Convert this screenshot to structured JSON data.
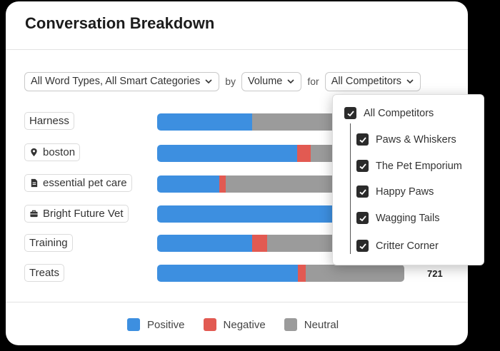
{
  "panel": {
    "title": "Conversation Breakdown"
  },
  "filters": {
    "word_types": "All Word Types, All Smart Categories",
    "by_label": "by",
    "metric": "Volume",
    "for_label": "for",
    "competitors": "All Competitors"
  },
  "rows": [
    {
      "label": "Harness",
      "icon": "none",
      "positive": 0.46,
      "negative": 0.0,
      "neutral": 0.54,
      "total": ""
    },
    {
      "label": "boston",
      "icon": "map-pin-icon",
      "positive": 0.56,
      "negative": 0.055,
      "neutral": 0.385,
      "total": ""
    },
    {
      "label": "essential pet care",
      "icon": "document-icon",
      "positive": 0.3,
      "negative": 0.03,
      "neutral": 0.67,
      "total": ""
    },
    {
      "label": "Bright Future Vet",
      "icon": "briefcase-icon",
      "positive": 1.0,
      "negative": 0.0,
      "neutral": 0.0,
      "total": ""
    },
    {
      "label": "Training",
      "icon": "none",
      "positive": 0.38,
      "negative": 0.06,
      "neutral": 0.56,
      "total": ""
    },
    {
      "label": "Treats",
      "icon": "none",
      "positive": 0.57,
      "negative": 0.03,
      "neutral": 0.4,
      "total": "721"
    }
  ],
  "legend": [
    {
      "label": "Positive",
      "color": "#3d8fe0"
    },
    {
      "label": "Negative",
      "color": "#e25a52"
    },
    {
      "label": "Neutral",
      "color": "#9b9b9b"
    }
  ],
  "competitor_dropdown": {
    "all_label": "All Competitors",
    "items": [
      "Paws & Whiskers",
      "The Pet Emporium",
      "Happy Paws",
      "Wagging Tails",
      "Critter Corner"
    ]
  }
}
